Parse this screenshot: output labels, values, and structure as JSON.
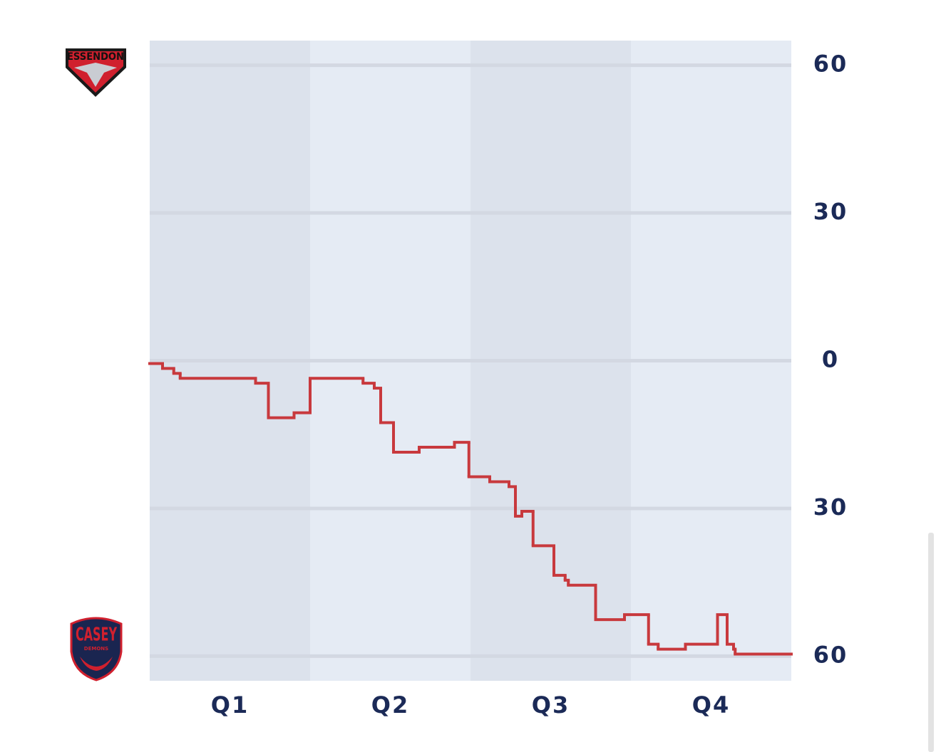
{
  "chart_data": {
    "type": "step",
    "teams": {
      "top": {
        "name": "ESSENDON"
      },
      "bottom": {
        "name": "CASEY",
        "subname": "DEMONS"
      }
    },
    "categories": [
      "Q1",
      "Q2",
      "Q3",
      "Q4"
    ],
    "xlim": [
      0,
      4
    ],
    "ylim": [
      -65,
      65
    ],
    "yticks": [
      {
        "value": 60,
        "label": "60"
      },
      {
        "value": 30,
        "label": "30"
      },
      0,
      {
        "value": -30,
        "label": "30"
      },
      {
        "value": -60,
        "label": "60"
      }
    ],
    "grid": true,
    "color": "#c8393d",
    "x": [
      0,
      0.08,
      0.15,
      0.19,
      0.66,
      0.74,
      0.9,
      1.0,
      1.33,
      1.4,
      1.44,
      1.52,
      1.68,
      1.9,
      1.99,
      2.12,
      2.24,
      2.28,
      2.32,
      2.39,
      2.52,
      2.59,
      2.61,
      2.78,
      2.96,
      3.11,
      3.17,
      3.34,
      3.54,
      3.6,
      3.64,
      3.65
    ],
    "values": [
      0,
      -1,
      -2,
      -3,
      -4,
      -11,
      -10,
      -3,
      -4,
      -5,
      -12,
      -18,
      -17,
      -16,
      -23,
      -24,
      -25,
      -31,
      -30,
      -37,
      -43,
      -44,
      -45,
      -52,
      -51,
      -57,
      -58,
      -57,
      -51,
      -57,
      -58,
      -59
    ]
  }
}
